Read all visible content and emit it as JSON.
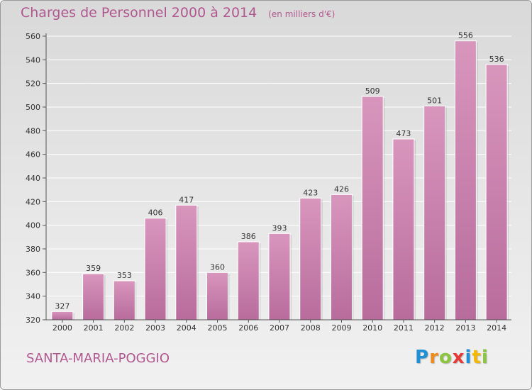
{
  "chart_data": {
    "type": "bar",
    "title": "Charges de Personnel 2000 à 2014",
    "subtitle": "(en milliers d'€)",
    "categories": [
      "2000",
      "2001",
      "2002",
      "2003",
      "2004",
      "2005",
      "2006",
      "2007",
      "2008",
      "2009",
      "2010",
      "2011",
      "2012",
      "2013",
      "2014"
    ],
    "values": [
      327,
      359,
      353,
      406,
      417,
      360,
      386,
      393,
      423,
      426,
      509,
      473,
      501,
      556,
      536
    ],
    "ylim": [
      320,
      560
    ],
    "yticks": [
      320,
      340,
      360,
      380,
      400,
      420,
      440,
      460,
      480,
      500,
      520,
      540,
      560
    ],
    "grid": true,
    "bar_color": "#d896bd",
    "bar_color_dark": "#b86c9c"
  },
  "footer": {
    "town": "SANTA-MARIA-POGGIO",
    "logo_letters": [
      {
        "char": "P",
        "color": "#1f8fd6"
      },
      {
        "char": "r",
        "color": "#f08a1c"
      },
      {
        "char": "o",
        "color": "#8cc63f"
      },
      {
        "char": "x",
        "color": "#e53935"
      },
      {
        "char": "i",
        "color": "#1f8fd6"
      },
      {
        "char": "t",
        "color": "#f5b800"
      },
      {
        "char": "i",
        "color": "#8cc63f"
      }
    ]
  }
}
